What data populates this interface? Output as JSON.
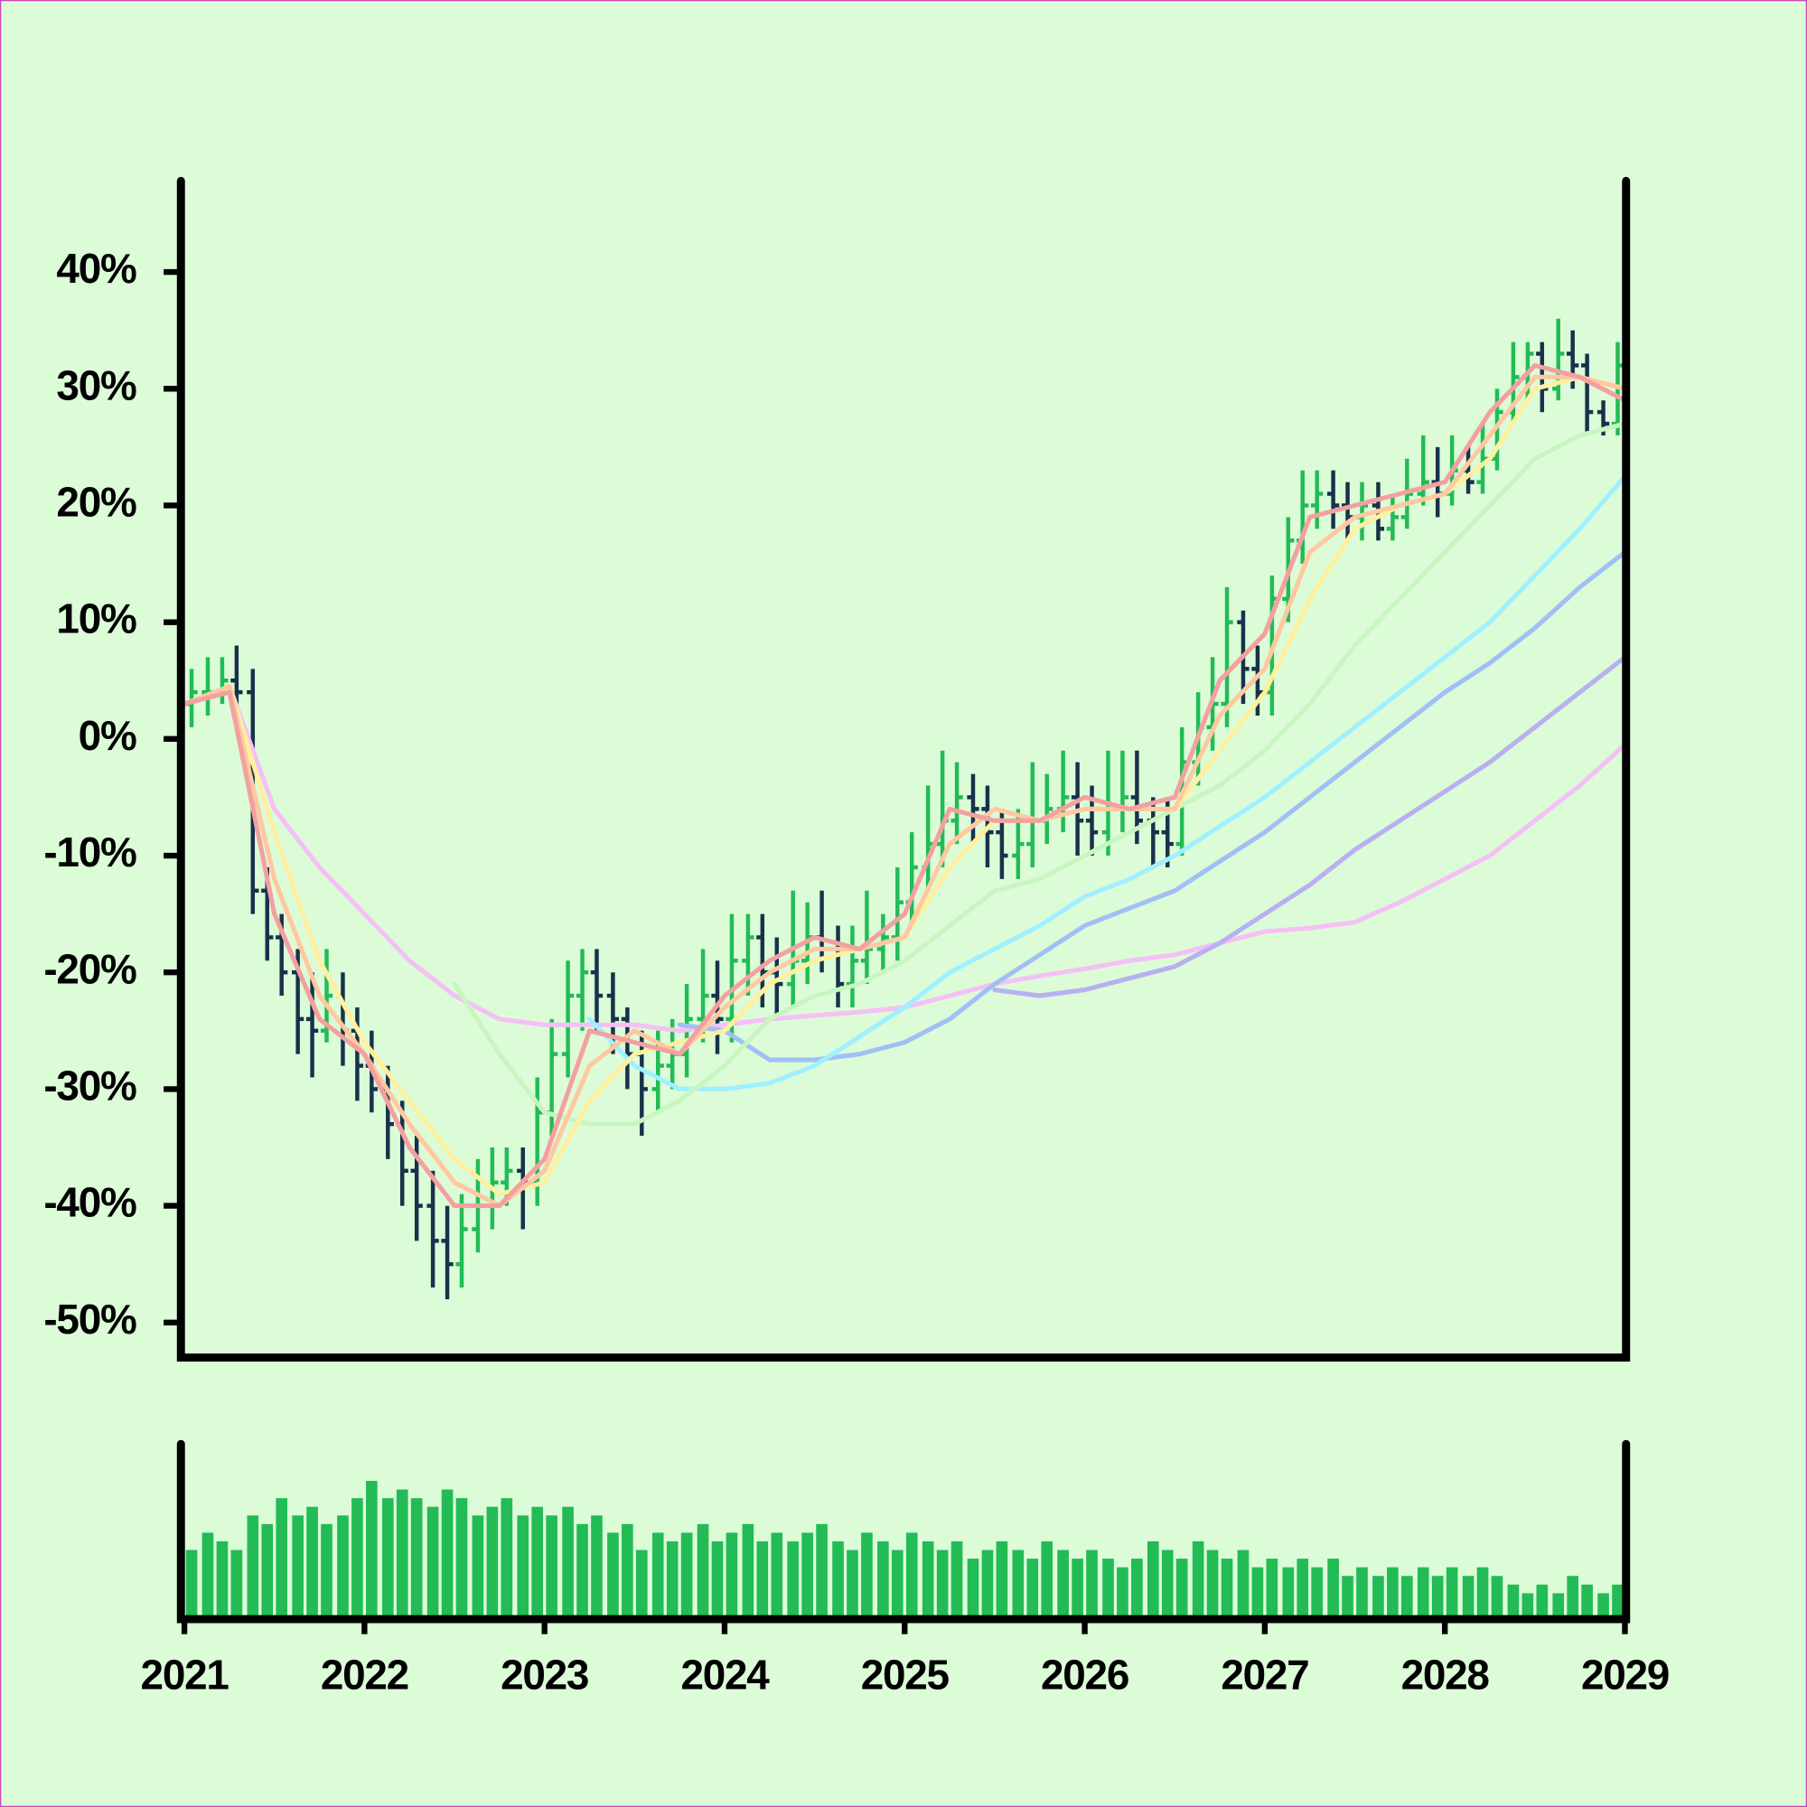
{
  "chart_data": {
    "type": "ohlc",
    "xlim": [
      2021,
      2029
    ],
    "xticks": [
      2021,
      2022,
      2023,
      2024,
      2025,
      2026,
      2027,
      2028,
      2029
    ],
    "ylim": [
      -53,
      48
    ],
    "yticks": [
      {
        "value": -50,
        "label": "-50%"
      },
      {
        "value": -40,
        "label": "-40%"
      },
      {
        "value": -30,
        "label": "-30%"
      },
      {
        "value": -20,
        "label": "-20%"
      },
      {
        "value": -10,
        "label": "-10%"
      },
      {
        "value": 0,
        "label": "0%"
      },
      {
        "value": 10,
        "label": "10%"
      },
      {
        "value": 20,
        "label": "20%"
      },
      {
        "value": 30,
        "label": "30%"
      },
      {
        "value": 40,
        "label": "40%"
      }
    ],
    "up_color": "#22bb55",
    "down_color": "#17324a",
    "volume_color": "#22bb55",
    "volume_ylim": [
      0,
      100
    ],
    "x": [
      2021.04,
      2021.13,
      2021.21,
      2021.29,
      2021.38,
      2021.46,
      2021.54,
      2021.63,
      2021.71,
      2021.79,
      2021.88,
      2021.96,
      2022.04,
      2022.13,
      2022.21,
      2022.29,
      2022.38,
      2022.46,
      2022.54,
      2022.63,
      2022.71,
      2022.79,
      2022.88,
      2022.96,
      2023.04,
      2023.13,
      2023.21,
      2023.29,
      2023.38,
      2023.46,
      2023.54,
      2023.63,
      2023.71,
      2023.79,
      2023.88,
      2023.96,
      2024.04,
      2024.13,
      2024.21,
      2024.29,
      2024.38,
      2024.46,
      2024.54,
      2024.63,
      2024.71,
      2024.79,
      2024.88,
      2024.96,
      2025.04,
      2025.13,
      2025.21,
      2025.29,
      2025.38,
      2025.46,
      2025.54,
      2025.63,
      2025.71,
      2025.79,
      2025.88,
      2025.96,
      2026.04,
      2026.13,
      2026.21,
      2026.29,
      2026.38,
      2026.46,
      2026.54,
      2026.63,
      2026.71,
      2026.79,
      2026.88,
      2026.96,
      2027.04,
      2027.13,
      2027.21,
      2027.29,
      2027.38,
      2027.46,
      2027.54,
      2027.63,
      2027.71,
      2027.79,
      2027.88,
      2027.96,
      2028.04,
      2028.13,
      2028.21,
      2028.29,
      2028.38,
      2028.46,
      2028.54,
      2028.63,
      2028.71,
      2028.79,
      2028.88,
      2028.96
    ],
    "open": [
      3,
      4,
      4,
      5,
      4,
      -13,
      -17,
      -20,
      -24,
      -25,
      -22,
      -25,
      -28,
      -30,
      -33,
      -37,
      -40,
      -43,
      -45,
      -42,
      -40,
      -38,
      -37,
      -38,
      -32,
      -27,
      -22,
      -20,
      -22,
      -24,
      -27,
      -30,
      -28,
      -27,
      -24,
      -22,
      -24,
      -19,
      -17,
      -20,
      -21,
      -19,
      -17,
      -18,
      -21,
      -19,
      -18,
      -17,
      -14,
      -11,
      -9,
      -7,
      -5,
      -6,
      -8,
      -10,
      -9,
      -7,
      -6,
      -5,
      -7,
      -8,
      -6,
      -5,
      -7,
      -8,
      -9,
      -2,
      1,
      3,
      10,
      6,
      4,
      12,
      17,
      20,
      21,
      20,
      19,
      20,
      18,
      19,
      21,
      22,
      21,
      23,
      22,
      24,
      28,
      31,
      33,
      30,
      33,
      32,
      28,
      27
    ],
    "high": [
      6,
      7,
      7,
      8,
      6,
      -11,
      -15,
      -18,
      -20,
      -18,
      -20,
      -23,
      -25,
      -28,
      -31,
      -34,
      -37,
      -40,
      -39,
      -36,
      -35,
      -35,
      -35,
      -29,
      -24,
      -19,
      -18,
      -18,
      -20,
      -23,
      -25,
      -25,
      -24,
      -21,
      -18,
      -19,
      -15,
      -15,
      -15,
      -17,
      -13,
      -14,
      -13,
      -16,
      -16,
      -13,
      -15,
      -11,
      -8,
      -4,
      -1,
      -2,
      -3,
      -4,
      -6,
      -6,
      -2,
      -3,
      -1,
      -2,
      -4,
      -1,
      -1,
      -1,
      -5,
      -5,
      1,
      4,
      7,
      13,
      11,
      8,
      14,
      19,
      23,
      23,
      23,
      22,
      22,
      22,
      21,
      24,
      26,
      25,
      26,
      25,
      27,
      30,
      34,
      34,
      34,
      36,
      35,
      33,
      29,
      34
    ],
    "low": [
      1,
      2,
      3,
      2,
      -15,
      -19,
      -22,
      -27,
      -29,
      -26,
      -28,
      -31,
      -32,
      -36,
      -40,
      -43,
      -47,
      -48,
      -47,
      -44,
      -42,
      -40,
      -42,
      -40,
      -34,
      -29,
      -25,
      -25,
      -27,
      -30,
      -34,
      -32,
      -30,
      -29,
      -26,
      -27,
      -26,
      -22,
      -23,
      -24,
      -23,
      -21,
      -20,
      -23,
      -23,
      -21,
      -20,
      -19,
      -16,
      -13,
      -11,
      -9,
      -9,
      -11,
      -12,
      -12,
      -11,
      -9,
      -8,
      -10,
      -10,
      -10,
      -8,
      -9,
      -11,
      -11,
      -10,
      -4,
      -1,
      1,
      3,
      2,
      2,
      10,
      15,
      18,
      18,
      17,
      17,
      17,
      17,
      18,
      20,
      19,
      20,
      21,
      21,
      23,
      27,
      29,
      28,
      29,
      30,
      26,
      26,
      26
    ],
    "close": [
      4,
      4,
      5,
      4,
      -13,
      -17,
      -20,
      -24,
      -25,
      -22,
      -25,
      -28,
      -30,
      -33,
      -37,
      -40,
      -43,
      -45,
      -42,
      -40,
      -38,
      -37,
      -38,
      -32,
      -27,
      -22,
      -20,
      -22,
      -24,
      -27,
      -30,
      -28,
      -27,
      -24,
      -22,
      -24,
      -19,
      -17,
      -20,
      -21,
      -19,
      -17,
      -18,
      -21,
      -19,
      -18,
      -17,
      -14,
      -11,
      -9,
      -7,
      -5,
      -6,
      -8,
      -10,
      -9,
      -7,
      -6,
      -5,
      -7,
      -8,
      -6,
      -5,
      -7,
      -8,
      -9,
      -2,
      1,
      3,
      10,
      6,
      4,
      12,
      17,
      20,
      21,
      20,
      19,
      20,
      18,
      19,
      21,
      22,
      21,
      23,
      22,
      24,
      28,
      31,
      33,
      30,
      33,
      32,
      28,
      27,
      32
    ],
    "volume": [
      40,
      50,
      45,
      40,
      60,
      55,
      70,
      60,
      65,
      55,
      60,
      70,
      80,
      70,
      75,
      70,
      65,
      75,
      70,
      60,
      65,
      70,
      60,
      65,
      60,
      65,
      55,
      60,
      50,
      55,
      40,
      50,
      45,
      50,
      55,
      45,
      50,
      55,
      45,
      50,
      45,
      50,
      55,
      45,
      40,
      50,
      45,
      40,
      50,
      45,
      40,
      45,
      35,
      40,
      45,
      40,
      35,
      45,
      40,
      35,
      40,
      35,
      30,
      35,
      45,
      40,
      35,
      45,
      40,
      35,
      40,
      30,
      35,
      30,
      35,
      30,
      35,
      25,
      30,
      25,
      30,
      25,
      30,
      25,
      30,
      25,
      30,
      25,
      20,
      15,
      20,
      15,
      25,
      20,
      15,
      20
    ],
    "series": [
      {
        "color": "#f5c0f5",
        "x": [
          2021,
          2021.25,
          2021.5,
          2021.75,
          2022,
          2022.25,
          2022.5,
          2022.75,
          2023,
          2023.25,
          2023.5,
          2023.75,
          2024,
          2024.25,
          2024.5,
          2024.75,
          2025,
          2025.25,
          2025.5,
          2025.75,
          2026,
          2026.25,
          2026.5,
          2026.75,
          2027,
          2027.25,
          2027.5,
          2027.75,
          2028,
          2028.25,
          2028.5,
          2028.75,
          2029
        ],
        "values": [
          3,
          4.5,
          -6,
          -11,
          -15,
          -19,
          -22,
          -24,
          -24.5,
          -24.5,
          -24.5,
          -25,
          -24.5,
          -24,
          -23.7,
          -23.4,
          -23,
          -22,
          -21,
          -20.3,
          -19.7,
          -19,
          -18.5,
          -17.5,
          -16.5,
          -16.2,
          -15.7,
          -14,
          -12,
          -10,
          -7,
          -4,
          -0.5
        ]
      },
      {
        "color": "#b8b0f0",
        "x": [
          2025.5,
          2025.75,
          2026,
          2026.25,
          2026.5,
          2026.75,
          2027,
          2027.25,
          2027.5,
          2027.75,
          2028,
          2028.25,
          2028.5,
          2028.75,
          2029
        ],
        "values": [
          -21.5,
          -22,
          -21.5,
          -20.5,
          -19.5,
          -17.5,
          -15,
          -12.5,
          -9.5,
          -7,
          -4.5,
          -2,
          1,
          4,
          7
        ]
      },
      {
        "color": "#a0c0f5",
        "x": [
          2023.75,
          2024,
          2024.25,
          2024.5,
          2024.75,
          2025,
          2025.25,
          2025.5,
          2025.75,
          2026,
          2026.25,
          2026.5,
          2026.75,
          2027,
          2027.25,
          2027.5,
          2027.75,
          2028,
          2028.25,
          2028.5,
          2028.75,
          2029
        ],
        "values": [
          -24.5,
          -25,
          -27.5,
          -27.5,
          -27,
          -26,
          -24,
          -21,
          -18.5,
          -16,
          -14.5,
          -13,
          -10.5,
          -8,
          -5,
          -2,
          1,
          4,
          6.5,
          9.5,
          13,
          16
        ]
      },
      {
        "color": "#a0f0ff",
        "x": [
          2023.25,
          2023.5,
          2023.75,
          2024,
          2024.25,
          2024.5,
          2024.75,
          2025,
          2025.25,
          2025.5,
          2025.75,
          2026,
          2026.25,
          2026.5,
          2026.75,
          2027,
          2027.25,
          2027.5,
          2027.75,
          2028,
          2028.25,
          2028.5,
          2028.75,
          2029
        ],
        "values": [
          -24,
          -28,
          -30,
          -30,
          -29.5,
          -28,
          -25.5,
          -23,
          -20,
          -18,
          -16,
          -13.5,
          -12,
          -10,
          -7.5,
          -5,
          -2,
          1,
          4,
          7,
          10,
          14,
          18,
          22.5
        ]
      },
      {
        "color": "#c8f5c0",
        "x": [
          2022.5,
          2022.75,
          2023,
          2023.25,
          2023.5,
          2023.75,
          2024,
          2024.25,
          2024.5,
          2024.75,
          2025,
          2025.25,
          2025.5,
          2025.75,
          2026,
          2026.25,
          2026.5,
          2026.75,
          2027,
          2027.25,
          2027.5,
          2027.75,
          2028,
          2028.25,
          2028.5,
          2028.75,
          2029
        ],
        "values": [
          -21,
          -27,
          -32,
          -33,
          -33,
          -31,
          -28,
          -24,
          -22,
          -21,
          -19,
          -16,
          -13,
          -12,
          -10,
          -8,
          -6,
          -4,
          -1,
          3,
          8,
          12,
          16,
          20,
          24,
          26,
          27
        ]
      },
      {
        "color": "#fff0a0",
        "x": [
          2021,
          2021.25,
          2021.5,
          2021.75,
          2022,
          2022.25,
          2022.5,
          2022.75,
          2023,
          2023.25,
          2023.5,
          2023.75,
          2024,
          2024.25,
          2024.5,
          2024.75,
          2025,
          2025.25,
          2025.5,
          2025.75,
          2026,
          2026.25,
          2026.5,
          2026.75,
          2027,
          2027.25,
          2027.5,
          2027.75,
          2028,
          2028.25,
          2028.5,
          2028.75,
          2029
        ],
        "values": [
          3,
          4.5,
          -8,
          -19,
          -26,
          -31,
          -36,
          -39,
          -38,
          -31,
          -27,
          -26,
          -25,
          -21,
          -19,
          -18,
          -17,
          -11,
          -7,
          -7,
          -6,
          -6,
          -6,
          -1,
          4,
          12,
          18,
          20,
          21,
          24,
          30,
          31,
          30
        ]
      },
      {
        "color": "#ffc8a0",
        "x": [
          2021,
          2021.25,
          2021.5,
          2021.75,
          2022,
          2022.25,
          2022.5,
          2022.75,
          2023,
          2023.25,
          2023.5,
          2023.75,
          2024,
          2024.25,
          2024.5,
          2024.75,
          2025,
          2025.25,
          2025.5,
          2025.75,
          2026,
          2026.25,
          2026.5,
          2026.75,
          2027,
          2027.25,
          2027.5,
          2027.75,
          2028,
          2028.25,
          2028.5,
          2028.75,
          2029
        ],
        "values": [
          3,
          4.5,
          -12,
          -22,
          -27,
          -33,
          -38,
          -40,
          -37,
          -28,
          -25,
          -27,
          -23,
          -20,
          -18,
          -18,
          -17,
          -9,
          -6,
          -7,
          -6,
          -6,
          -6,
          2,
          6,
          16,
          19,
          20,
          21,
          26,
          31,
          31,
          30
        ]
      },
      {
        "color": "#f4a0a0",
        "x": [
          2021,
          2021.25,
          2021.5,
          2021.75,
          2022,
          2022.25,
          2022.5,
          2022.75,
          2023,
          2023.25,
          2023.5,
          2023.75,
          2024,
          2024.25,
          2024.5,
          2024.75,
          2025,
          2025.25,
          2025.5,
          2025.75,
          2026,
          2026.25,
          2026.5,
          2026.75,
          2027,
          2027.25,
          2027.5,
          2027.75,
          2028,
          2028.25,
          2028.5,
          2028.75,
          2029
        ],
        "values": [
          3,
          4,
          -15,
          -24,
          -27,
          -35,
          -40,
          -40,
          -36,
          -25,
          -26,
          -27,
          -22,
          -19,
          -17,
          -18,
          -15,
          -6,
          -7,
          -7,
          -5,
          -6,
          -5,
          5,
          9,
          19,
          20,
          21,
          22,
          28,
          32,
          31,
          29
        ]
      }
    ]
  }
}
